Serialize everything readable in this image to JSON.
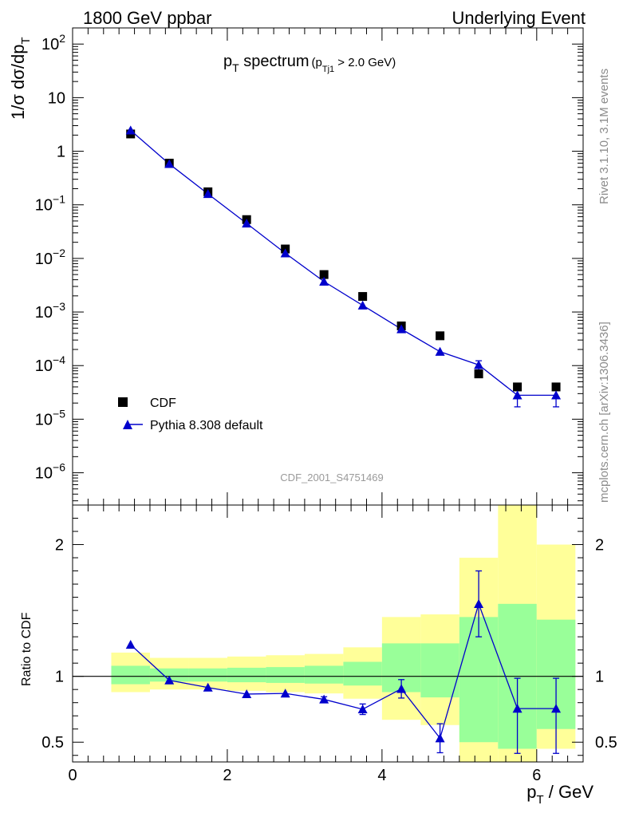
{
  "header": {
    "left": "1800 GeV ppbar",
    "right": "Underlying Event"
  },
  "plot_title": {
    "main": "p",
    "main_sub": "T",
    "main_rest": " spectrum",
    "cond_open": "(p",
    "cond_sub": "Tj1",
    "cond_rest": " > 2.0 GeV)"
  },
  "side_labels": {
    "rivet": "Rivet 3.1.10,  3.1M events",
    "mcplots": "mcplots.cern.ch [arXiv:1306.3436]"
  },
  "watermark": "CDF_2001_S4751469",
  "axes": {
    "ylabel_main": "1/σ dσ/dp",
    "ylabel_main_sub": "T",
    "ylabel_ratio": "Ratio to CDF",
    "xlabel": "p",
    "xlabel_sub": "T",
    "xlabel_rest": " / GeV"
  },
  "legend": {
    "data_label": "CDF",
    "mc_label": "Pythia 8.308 default"
  },
  "colors": {
    "mc": "#0000cc",
    "data": "#000000",
    "band_inner": "#99ff99",
    "band_outer": "#ffff99"
  },
  "chart_data": [
    {
      "type": "scatter",
      "panel": "main",
      "yscale": "log",
      "xlim": [
        0,
        6.6
      ],
      "ylim": [
        2.5e-07,
        200
      ],
      "xticks": [
        "0",
        "2",
        "4",
        "6"
      ],
      "yticks": [
        {
          "base": "10",
          "exp": "2",
          "value": 100
        },
        {
          "base": "10",
          "exp": "",
          "value": 10
        },
        {
          "base": "1",
          "exp": "",
          "value": 1
        },
        {
          "base": "10",
          "exp": "−1",
          "value": 0.1
        },
        {
          "base": "10",
          "exp": "−2",
          "value": 0.01
        },
        {
          "base": "10",
          "exp": "−3",
          "value": 0.001
        },
        {
          "base": "10",
          "exp": "−4",
          "value": 0.0001
        },
        {
          "base": "10",
          "exp": "−5",
          "value": 1e-05
        },
        {
          "base": "10",
          "exp": "−6",
          "value": 1e-06
        }
      ],
      "x": [
        0.75,
        1.25,
        1.75,
        2.25,
        2.75,
        3.25,
        3.75,
        4.25,
        4.75,
        5.25,
        5.75,
        6.25
      ],
      "series": [
        {
          "name": "CDF",
          "values": [
            2.1,
            0.6,
            0.175,
            0.053,
            0.015,
            0.005,
            0.00195,
            0.00055,
            0.00036,
            7e-05,
            4e-05,
            4e-05
          ]
        },
        {
          "name": "Pythia 8.308 default",
          "values": [
            2.45,
            0.58,
            0.16,
            0.045,
            0.0125,
            0.0037,
            0.00133,
            0.00048,
            0.000182,
            0.000103,
            2.8e-05,
            2.8e-05
          ],
          "yerr_low": [
            0,
            0,
            0,
            0,
            0,
            0,
            0,
            0,
            0,
            2e-05,
            1.1e-05,
            1.1e-05
          ],
          "yerr_high": [
            0,
            0,
            0,
            0,
            0,
            0,
            0,
            0,
            0,
            2e-05,
            9e-06,
            9e-06
          ]
        }
      ]
    },
    {
      "type": "scatter",
      "panel": "ratio",
      "xlim": [
        0,
        6.6
      ],
      "ylim": [
        0.35,
        2.3
      ],
      "xticks": [
        "0",
        "2",
        "4",
        "6"
      ],
      "yticks": [
        "0.5",
        "1",
        "2"
      ],
      "reference_line": 1,
      "x": [
        0.75,
        1.25,
        1.75,
        2.25,
        2.75,
        3.25,
        3.75,
        4.25,
        4.75,
        5.25,
        5.75,
        6.25
      ],
      "bin_edges": [
        0.5,
        1.0,
        1.5,
        2.0,
        2.5,
        3.0,
        3.5,
        4.0,
        4.5,
        5.0,
        5.5,
        6.0,
        6.5
      ],
      "inner_band_low": [
        0.94,
        0.96,
        0.96,
        0.955,
        0.95,
        0.945,
        0.93,
        0.88,
        0.84,
        0.5,
        0.45,
        0.6
      ],
      "inner_band_high": [
        1.08,
        1.06,
        1.06,
        1.065,
        1.07,
        1.08,
        1.11,
        1.25,
        1.25,
        1.45,
        1.55,
        1.43
      ],
      "outer_band_low": [
        0.88,
        0.9,
        0.9,
        0.89,
        0.88,
        0.87,
        0.83,
        0.67,
        0.63,
        0.2,
        0.1,
        0.45
      ],
      "outer_band_high": [
        1.18,
        1.14,
        1.14,
        1.15,
        1.16,
        1.17,
        1.22,
        1.45,
        1.47,
        1.9,
        2.5,
        2.0
      ],
      "series": [
        {
          "name": "Pythia 8.308 default",
          "values": [
            1.24,
            0.97,
            0.915,
            0.865,
            0.87,
            0.825,
            0.75,
            0.905,
            0.53,
            1.55,
            0.755,
            0.755
          ],
          "yerr_low": [
            0,
            0,
            0,
            0,
            0,
            0.02,
            0.04,
            0.07,
            0.11,
            0.25,
            0.34,
            0.34
          ],
          "yerr_high": [
            0,
            0,
            0,
            0,
            0,
            0.02,
            0.04,
            0.07,
            0.11,
            0.25,
            0.23,
            0.23
          ]
        }
      ]
    }
  ]
}
